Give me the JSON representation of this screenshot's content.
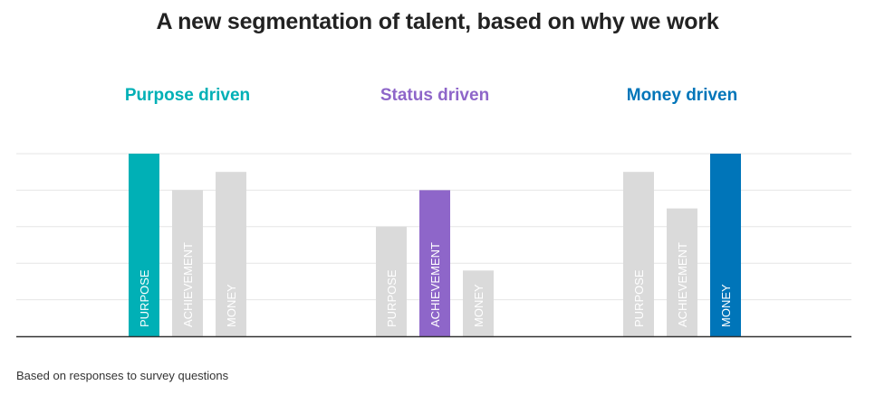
{
  "title": "A new segmentation of talent, based on why we work",
  "footnote": "Based on responses to survey questions",
  "colors": {
    "purpose": "#00b0b6",
    "status": "#8e66c9",
    "money": "#0075b9",
    "muted_bar": "#dadada",
    "grid": "#e6e6e6",
    "axis": "#333333",
    "title": "#222222"
  },
  "chart_data": {
    "type": "bar",
    "title": "A new segmentation of talent, based on why we work",
    "xlabel": "",
    "ylabel": "",
    "ylim": [
      0,
      5
    ],
    "grid": true,
    "legend": "none",
    "categories": [
      "PURPOSE",
      "ACHIEVEMENT",
      "MONEY"
    ],
    "groups": [
      {
        "name": "Purpose driven",
        "highlight": "PURPOSE",
        "color": "#00b0b6",
        "values": [
          5,
          4,
          4.5
        ]
      },
      {
        "name": "Status driven",
        "highlight": "ACHIEVEMENT",
        "color": "#8e66c9",
        "values": [
          3,
          4,
          1.8
        ]
      },
      {
        "name": "Money driven",
        "highlight": "MONEY",
        "color": "#0075b9",
        "values": [
          4.5,
          3.5,
          5
        ]
      }
    ]
  }
}
